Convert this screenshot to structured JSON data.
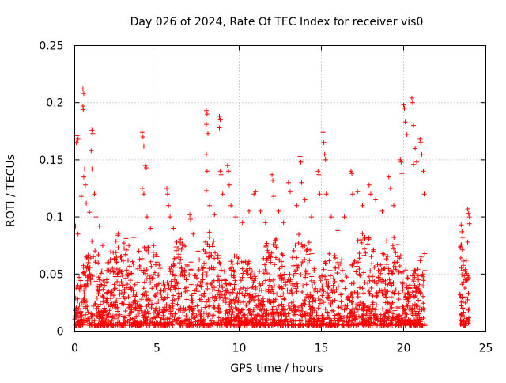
{
  "chart_data": {
    "type": "scatter",
    "title": "Day 026 of 2024, Rate Of TEC Index for receiver vis0",
    "xlabel": "GPS time / hours",
    "ylabel": "ROTI / TECUs",
    "xlim": [
      0,
      25
    ],
    "ylim": [
      0,
      0.25
    ],
    "grid": true,
    "marker": "+",
    "series_color": "#ff0000",
    "x_ticks": [
      0,
      5,
      10,
      15,
      20,
      25
    ],
    "x_tick_labels": [
      "0",
      "5",
      "10",
      "15",
      "20",
      "25"
    ],
    "y_ticks": [
      0,
      0.05,
      0.1,
      0.15,
      0.2,
      0.25
    ],
    "y_tick_labels": [
      "0",
      "0.05",
      "0.1",
      "0.15",
      "0.2",
      "0.25"
    ],
    "data_coverage_hours": [
      [
        0.0,
        21.3
      ],
      [
        23.4,
        24.0
      ]
    ],
    "series": [
      {
        "name": "vis0",
        "points": [
          [
            0.5,
            0.212
          ],
          [
            0.55,
            0.208
          ],
          [
            0.5,
            0.197
          ],
          [
            0.52,
            0.194
          ],
          [
            0.15,
            0.171
          ],
          [
            0.2,
            0.168
          ],
          [
            0.1,
            0.165
          ],
          [
            1.05,
            0.176
          ],
          [
            1.1,
            0.173
          ],
          [
            1.0,
            0.158
          ],
          [
            1.05,
            0.142
          ],
          [
            0.6,
            0.142
          ],
          [
            0.55,
            0.135
          ],
          [
            0.65,
            0.128
          ],
          [
            0.05,
            0.092
          ],
          [
            0.2,
            0.085
          ],
          [
            0.4,
            0.118
          ],
          [
            0.7,
            0.112
          ],
          [
            0.9,
            0.104
          ],
          [
            1.2,
            0.12
          ],
          [
            1.3,
            0.1
          ],
          [
            1.5,
            0.092
          ],
          [
            1.7,
            0.075
          ],
          [
            2.0,
            0.06
          ],
          [
            2.3,
            0.055
          ],
          [
            2.6,
            0.05
          ],
          [
            2.9,
            0.04
          ],
          [
            3.1,
            0.067
          ],
          [
            3.3,
            0.075
          ],
          [
            3.6,
            0.082
          ],
          [
            3.9,
            0.07
          ],
          [
            4.1,
            0.174
          ],
          [
            4.15,
            0.17
          ],
          [
            4.2,
            0.162
          ],
          [
            4.3,
            0.145
          ],
          [
            4.35,
            0.143
          ],
          [
            4.1,
            0.125
          ],
          [
            4.2,
            0.12
          ],
          [
            4.4,
            0.1
          ],
          [
            4.6,
            0.09
          ],
          [
            4.8,
            0.075
          ],
          [
            5.0,
            0.065
          ],
          [
            5.2,
            0.055
          ],
          [
            5.6,
            0.125
          ],
          [
            5.65,
            0.12
          ],
          [
            5.7,
            0.11
          ],
          [
            5.8,
            0.1
          ],
          [
            6.0,
            0.09
          ],
          [
            6.2,
            0.078
          ],
          [
            6.5,
            0.055
          ],
          [
            6.8,
            0.045
          ],
          [
            7.0,
            0.102
          ],
          [
            7.05,
            0.098
          ],
          [
            7.2,
            0.085
          ],
          [
            7.5,
            0.07
          ],
          [
            7.8,
            0.055
          ],
          [
            8.0,
            0.193
          ],
          [
            8.05,
            0.19
          ],
          [
            8.0,
            0.181
          ],
          [
            8.1,
            0.173
          ],
          [
            8.0,
            0.155
          ],
          [
            8.05,
            0.14
          ],
          [
            8.0,
            0.123
          ],
          [
            8.2,
            0.11
          ],
          [
            8.5,
            0.102
          ],
          [
            8.8,
            0.188
          ],
          [
            8.85,
            0.185
          ],
          [
            8.8,
            0.178
          ],
          [
            8.85,
            0.14
          ],
          [
            8.9,
            0.137
          ],
          [
            9.0,
            0.12
          ],
          [
            9.3,
            0.145
          ],
          [
            9.35,
            0.14
          ],
          [
            9.4,
            0.128
          ],
          [
            9.5,
            0.11
          ],
          [
            9.8,
            0.1
          ],
          [
            10.2,
            0.095
          ],
          [
            10.6,
            0.105
          ],
          [
            10.9,
            0.12
          ],
          [
            11.0,
            0.122
          ],
          [
            11.3,
            0.105
          ],
          [
            11.6,
            0.095
          ],
          [
            12.0,
            0.137
          ],
          [
            12.05,
            0.132
          ],
          [
            12.1,
            0.118
          ],
          [
            12.4,
            0.105
          ],
          [
            12.7,
            0.095
          ],
          [
            13.0,
            0.13
          ],
          [
            13.1,
            0.122
          ],
          [
            13.5,
            0.11
          ],
          [
            13.7,
            0.153
          ],
          [
            13.75,
            0.148
          ],
          [
            13.8,
            0.13
          ],
          [
            14.0,
            0.115
          ],
          [
            14.4,
            0.1
          ],
          [
            14.8,
            0.14
          ],
          [
            14.85,
            0.137
          ],
          [
            14.9,
            0.12
          ],
          [
            15.1,
            0.174
          ],
          [
            15.15,
            0.165
          ],
          [
            15.2,
            0.155
          ],
          [
            15.25,
            0.15
          ],
          [
            15.3,
            0.12
          ],
          [
            15.6,
            0.1
          ],
          [
            16.0,
            0.088
          ],
          [
            16.4,
            0.1
          ],
          [
            16.8,
            0.14
          ],
          [
            16.85,
            0.138
          ],
          [
            16.9,
            0.12
          ],
          [
            17.2,
            0.122
          ],
          [
            17.5,
            0.11
          ],
          [
            17.9,
            0.128
          ],
          [
            18.0,
            0.12
          ],
          [
            18.3,
            0.115
          ],
          [
            18.7,
            0.105
          ],
          [
            19.1,
            0.135
          ],
          [
            19.2,
            0.125
          ],
          [
            19.4,
            0.11
          ],
          [
            19.8,
            0.15
          ],
          [
            19.85,
            0.148
          ],
          [
            19.9,
            0.138
          ],
          [
            20.0,
            0.198
          ],
          [
            20.05,
            0.195
          ],
          [
            20.1,
            0.183
          ],
          [
            20.2,
            0.172
          ],
          [
            20.5,
            0.204
          ],
          [
            20.55,
            0.2
          ],
          [
            20.6,
            0.18
          ],
          [
            20.7,
            0.16
          ],
          [
            20.8,
            0.148
          ],
          [
            20.6,
            0.146
          ],
          [
            21.0,
            0.168
          ],
          [
            21.05,
            0.165
          ],
          [
            21.1,
            0.155
          ],
          [
            21.2,
            0.14
          ],
          [
            21.25,
            0.12
          ],
          [
            23.5,
            0.093
          ],
          [
            23.55,
            0.087
          ],
          [
            23.6,
            0.082
          ],
          [
            23.9,
            0.107
          ],
          [
            23.95,
            0.103
          ],
          [
            24.0,
            0.1
          ],
          [
            24.0,
            0.094
          ],
          [
            23.9,
            0.078
          ]
        ]
      }
    ]
  }
}
